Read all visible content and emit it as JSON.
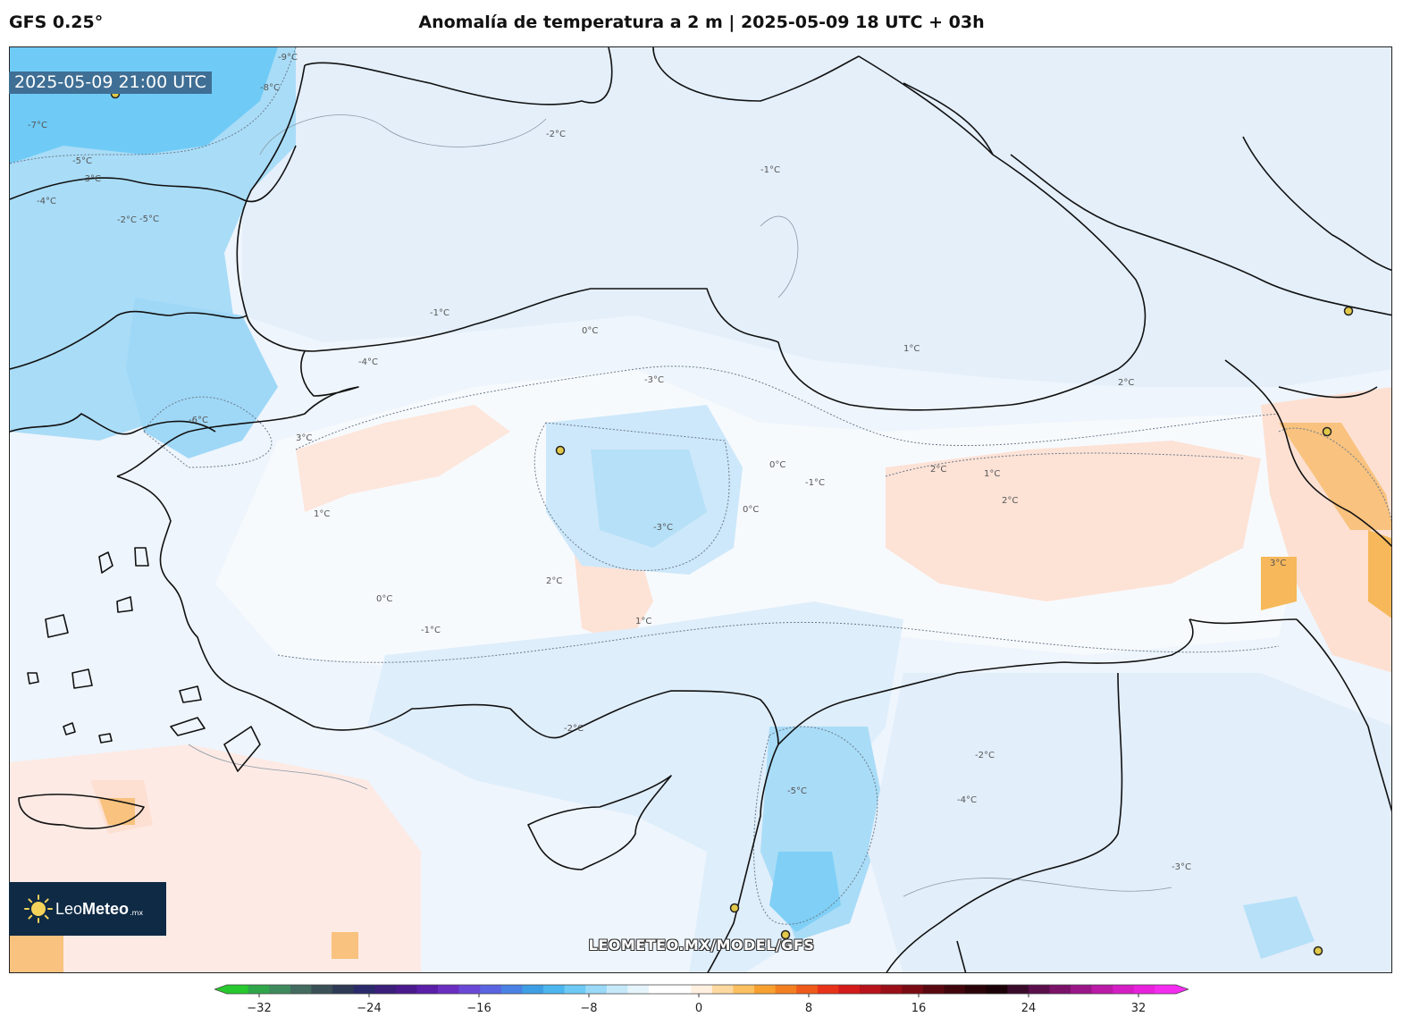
{
  "header": {
    "model": "GFS 0.25°",
    "title": "Anomalía de temperatura a 2 m | 2025-05-09 18 UTC + 03h"
  },
  "map": {
    "valid_time": "2025-05-09 21:00 UTC",
    "colors": {
      "cold_strong": "#5ec5f5",
      "cold": "#9fd9f7",
      "cold_light": "#cfe9fa",
      "cool": "#e6f1fb",
      "neutral": "#f8fbfe",
      "warm_light": "#fde2d8",
      "warm": "#fbc98b",
      "warm_strong": "#f5b04a",
      "coast": "#111111"
    },
    "contour_labels": [
      "-9°C",
      "-8°C",
      "-7°C",
      "-5°C",
      "-4°C",
      "-3°C",
      "-2°C",
      "-1°C",
      "0°C",
      "1°C",
      "2°C",
      "3°C",
      "-4°C",
      "-5°C",
      "-6°C",
      "-3°C",
      "-2°C",
      "-1°C",
      "0°C",
      "1°C",
      "2°C",
      "-1°C",
      "0°C",
      "1°C",
      "2°C",
      "3°C",
      "-2°C",
      "-3°C",
      "-4°C",
      "-5°C",
      "-1°C",
      "0°C",
      "1°C",
      "2°C",
      "-3°C",
      "-2°C"
    ]
  },
  "watermark": "LEOMETEO.MX/MODEL/GFS",
  "logo": {
    "name_light": "Leo",
    "name_bold": "Meteo",
    "suffix": ".mx"
  },
  "colorbar": {
    "ticks": [
      "−32",
      "−24",
      "−16",
      "−8",
      "0",
      "8",
      "16",
      "24",
      "32"
    ],
    "range": [
      -32,
      32
    ],
    "colors": [
      "#27c92e",
      "#2fa64a",
      "#3f8a5d",
      "#436b5f",
      "#3b4f57",
      "#2e3a55",
      "#2a2a6a",
      "#3a1e7a",
      "#4a1a8c",
      "#5a1ea8",
      "#6a2ec0",
      "#6a48d6",
      "#5a64e0",
      "#4a82e4",
      "#3e9ee4",
      "#4cb6ee",
      "#6ccaf4",
      "#9ad9f8",
      "#c6e9fa",
      "#e6f4fc",
      "#ffffff",
      "#ffffff",
      "#fff0e0",
      "#fdd9a0",
      "#fbc060",
      "#f7a030",
      "#f37f20",
      "#ef5a1a",
      "#e8321a",
      "#d41a1a",
      "#b8121a",
      "#9a0e18",
      "#7a0a14",
      "#5a0810",
      "#40060c",
      "#2a0408",
      "#1a0206",
      "#3a0a2a",
      "#5a0e4a",
      "#7a1268",
      "#9a1688",
      "#ba1aa6",
      "#d41ec4",
      "#e822dc",
      "#f42cf0"
    ]
  }
}
